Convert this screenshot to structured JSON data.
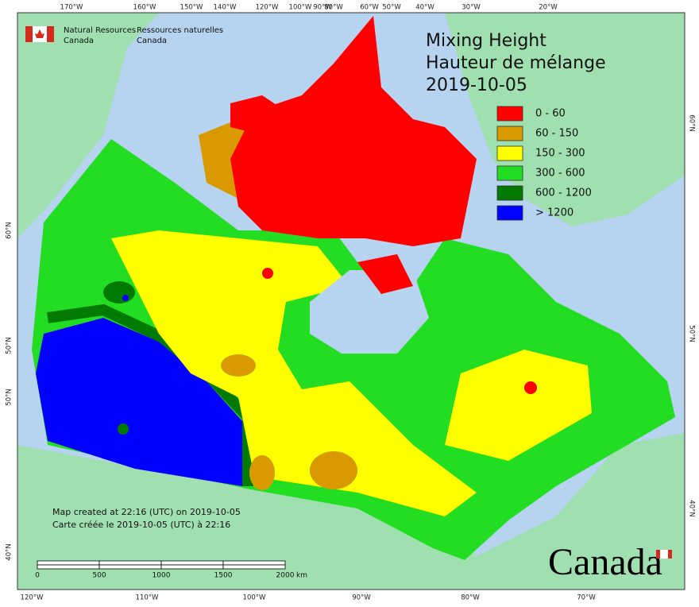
{
  "header": {
    "agency_en": [
      "Natural Resources",
      "Canada"
    ],
    "agency_fr": [
      "Ressources naturelles",
      "Canada"
    ]
  },
  "title": [
    "Mixing Height",
    "Hauteur de mélange",
    "2019-10-05"
  ],
  "legend": [
    {
      "label": "0 - 60",
      "color": "#ff0000"
    },
    {
      "label": "60 - 150",
      "color": "#d89a00"
    },
    {
      "label": "150 - 300",
      "color": "#ffff00"
    },
    {
      "label": "300 - 600",
      "color": "#22dd22"
    },
    {
      "label": "600 - 1200",
      "color": "#007a00"
    },
    {
      "label": "> 1200",
      "color": "#0000ff"
    }
  ],
  "graticule": {
    "top": [
      "170°W",
      "160°W",
      "150°W",
      "140°W",
      "120°W",
      "100°W",
      "90°W",
      "80°W",
      "60°W",
      "50°W",
      "40°W",
      "30°W",
      "20°W"
    ],
    "bottom": [
      "120°W",
      "110°W",
      "100°W",
      "90°W",
      "80°W",
      "70°W"
    ],
    "left": [
      "60°N",
      "50°N",
      "50°N",
      "40°N"
    ],
    "right": [
      "60°N",
      "50°N",
      "40°N"
    ]
  },
  "notes": [
    "Map created at 22:16 (UTC) on 2019-10-05",
    "Carte créée le 2019-10-05 (UTC) à 22:16"
  ],
  "scale_bar": {
    "labels": [
      "0",
      "500",
      "1000",
      "1500",
      "2000"
    ],
    "unit": "km"
  },
  "wordmark": "Canada"
}
